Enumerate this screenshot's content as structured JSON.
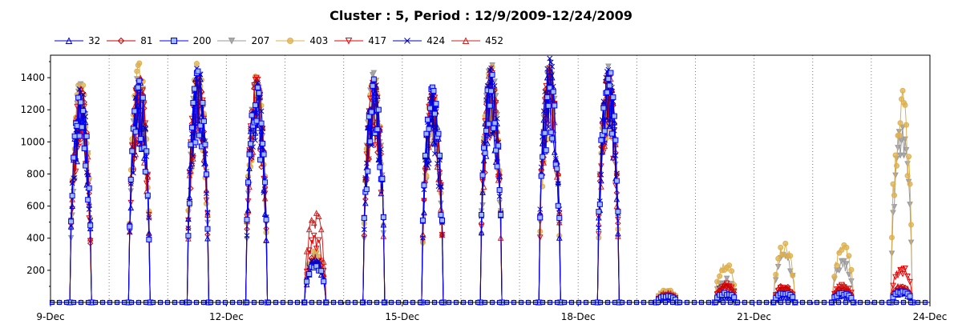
{
  "chart_data": {
    "type": "line",
    "title": "Cluster : 5, Period : 12/9/2009-12/24/2009",
    "xlabel": "",
    "ylabel": "",
    "xlim": [
      "2009-12-09",
      "2009-12-24"
    ],
    "ylim": [
      0,
      1540
    ],
    "yticks": [
      200,
      400,
      600,
      800,
      1000,
      1200,
      1400
    ],
    "xtick_labels": [
      {
        "date": "2009-12-09",
        "label": "9-Dec"
      },
      {
        "date": "2009-12-12",
        "label": "12-Dec"
      },
      {
        "date": "2009-12-15",
        "label": "15-Dec"
      },
      {
        "date": "2009-12-18",
        "label": "18-Dec"
      },
      {
        "date": "2009-12-21",
        "label": "21-Dec"
      },
      {
        "date": "2009-12-24",
        "label": "24-Dec"
      }
    ],
    "grid": "vertical dotted daily",
    "legend_position": "top-left",
    "x_dates": [
      "2009-12-09",
      "2009-12-10",
      "2009-12-11",
      "2009-12-12",
      "2009-12-13",
      "2009-12-14",
      "2009-12-15",
      "2009-12-16",
      "2009-12-17",
      "2009-12-18",
      "2009-12-19",
      "2009-12-20",
      "2009-12-21",
      "2009-12-22",
      "2009-12-23"
    ],
    "note_values": "daily peak value of each series (approximate)",
    "series": [
      {
        "name": "32",
        "color": "#0000cc",
        "marker": "triangle-up",
        "daily_peaks": [
          1300,
          1380,
          1440,
          1360,
          260,
          1390,
          1330,
          1420,
          1450,
          1430,
          20,
          30,
          30,
          40,
          60
        ]
      },
      {
        "name": "81",
        "color": "#cc0000",
        "marker": "diamond",
        "daily_peaks": [
          1350,
          1400,
          1420,
          1380,
          300,
          1370,
          1320,
          1430,
          1440,
          1420,
          50,
          110,
          110,
          90,
          100
        ]
      },
      {
        "name": "200",
        "color": "#0000ff",
        "marker": "square",
        "daily_peaks": [
          1320,
          1380,
          1440,
          1350,
          250,
          1390,
          1340,
          1430,
          1420,
          1480,
          40,
          60,
          60,
          60,
          70
        ]
      },
      {
        "name": "207",
        "color": "#999999",
        "marker": "triangle-down",
        "daily_peaks": [
          1360,
          1440,
          1470,
          1390,
          310,
          1430,
          1330,
          1490,
          1470,
          1470,
          70,
          150,
          300,
          260,
          1100
        ]
      },
      {
        "name": "403",
        "color": "#ddb050",
        "marker": "circle",
        "daily_peaks": [
          1400,
          1490,
          1500,
          1420,
          320,
          1400,
          1310,
          1480,
          1430,
          1440,
          80,
          250,
          370,
          370,
          1330
        ]
      },
      {
        "name": "417",
        "color": "#ee0000",
        "marker": "triangle-down",
        "daily_peaks": [
          1320,
          1430,
          1460,
          1400,
          420,
          1380,
          1320,
          1440,
          1460,
          1420,
          50,
          120,
          100,
          110,
          230
        ]
      },
      {
        "name": "424",
        "color": "#0000bb",
        "marker": "x",
        "daily_peaks": [
          1340,
          1380,
          1470,
          1380,
          280,
          1400,
          1300,
          1460,
          1520,
          1450,
          40,
          60,
          60,
          60,
          80
        ]
      },
      {
        "name": "452",
        "color": "#cc2222",
        "marker": "triangle-up",
        "daily_peaks": [
          1330,
          1410,
          1430,
          1390,
          580,
          1380,
          1320,
          1460,
          1450,
          1440,
          60,
          100,
          90,
          110,
          110
        ]
      }
    ]
  }
}
